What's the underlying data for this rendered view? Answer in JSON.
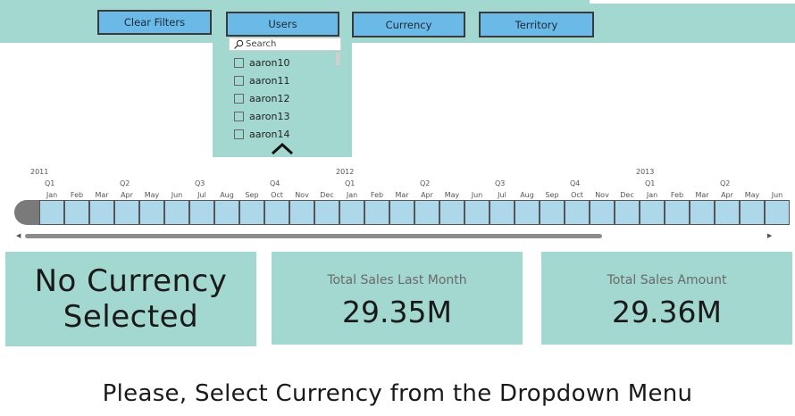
{
  "filters": {
    "clear_label": "Clear Filters",
    "users_label": "Users",
    "currency_label": "Currency",
    "territory_label": "Territory"
  },
  "users_dropdown": {
    "search_placeholder": "Search",
    "items": [
      "aaron10",
      "aaron11",
      "aaron12",
      "aaron13",
      "aaron14"
    ]
  },
  "timeline": {
    "years": [
      "2011",
      "2012",
      "2013"
    ],
    "quarters": [
      "Q1",
      "Q2",
      "Q3",
      "Q4",
      "Q1",
      "Q2",
      "Q3",
      "Q4",
      "Q1",
      "Q2"
    ],
    "months": [
      "Jan",
      "Feb",
      "Mar",
      "Apr",
      "May",
      "Jun",
      "Jul",
      "Aug",
      "Sep",
      "Oct",
      "Nov",
      "Dec",
      "Jan",
      "Feb",
      "Mar",
      "Apr",
      "May",
      "Jun",
      "Jul",
      "Aug",
      "Sep",
      "Oct",
      "Nov",
      "Dec",
      "Jan",
      "Feb",
      "Mar",
      "Apr",
      "May",
      "Jun"
    ]
  },
  "cards": {
    "message": "No Currency Selected",
    "last_month_title": "Total Sales Last Month",
    "last_month_value": "29.35M",
    "amount_title": "Total Sales Amount",
    "amount_value": "29.36M"
  },
  "bottom_message": "Please, Select Currency from the Dropdown Menu",
  "colors": {
    "panel": "#a2d8cf",
    "button": "#6ab9e6",
    "timeline_cell": "#add8ea"
  }
}
